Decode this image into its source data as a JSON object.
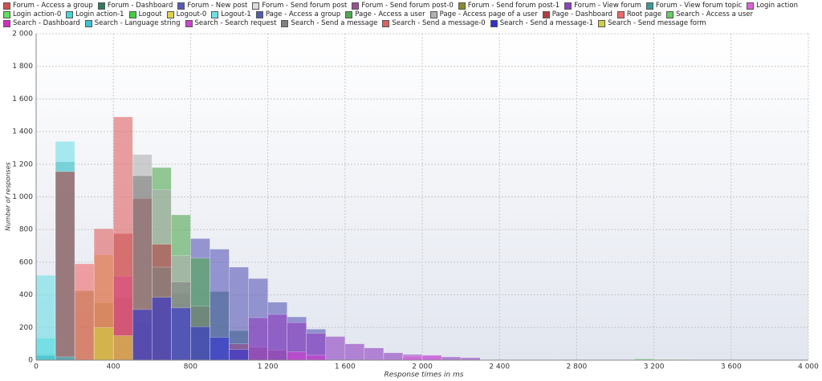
{
  "chart_data": {
    "type": "histogram-overlay",
    "x_label": "Response times in ms",
    "y_label": "Number of responses",
    "bin_width": 100,
    "xlim": [
      0,
      4000
    ],
    "ylim": [
      0,
      2000
    ],
    "grid": true,
    "xticks": [
      0,
      400,
      800,
      {
        "value": 1200,
        "label": "1 200"
      },
      {
        "value": 1600,
        "label": "1 600"
      },
      {
        "value": 2000,
        "label": "2 000"
      },
      {
        "value": 2400,
        "label": "2 400"
      },
      {
        "value": 2800,
        "label": "2 800"
      },
      {
        "value": 3200,
        "label": "3 200"
      },
      {
        "value": 3600,
        "label": "3 600"
      },
      {
        "value": 4000,
        "label": "4 000"
      }
    ],
    "yticks": [
      0,
      200,
      400,
      600,
      800,
      {
        "value": 1000,
        "label": "1 000"
      },
      {
        "value": 1200,
        "label": "1 200"
      },
      {
        "value": 1400,
        "label": "1 400"
      },
      {
        "value": 1600,
        "label": "1 600"
      },
      {
        "value": 1800,
        "label": "1 800"
      },
      {
        "value": 2000,
        "label": "2 000"
      }
    ],
    "series": [
      {
        "name": "Forum - Access a group",
        "color": "#d05050",
        "x": [
          0,
          100
        ],
        "values": [
          20,
          15
        ]
      },
      {
        "name": "Forum - Dashboard",
        "color": "#2e7d5b",
        "x": [
          700,
          800,
          900,
          1000
        ],
        "values": [
          410,
          330,
          420,
          180
        ]
      },
      {
        "name": "Forum - New post",
        "color": "#5858b8",
        "x": [
          800,
          900,
          1000,
          1100,
          1200,
          1300,
          1400
        ],
        "values": [
          745,
          680,
          570,
          500,
          355,
          265,
          190
        ]
      },
      {
        "name": "Forum - Send forum post",
        "color": "#dddddd",
        "x": [
          3200,
          3300
        ],
        "values": [
          8,
          10
        ]
      },
      {
        "name": "Forum - Send forum post-0",
        "color": "#9b4f8f",
        "x": [
          1000,
          1100,
          1200
        ],
        "values": [
          100,
          80,
          60
        ]
      },
      {
        "name": "Forum - Send forum post-1",
        "color": "#8a8a2a",
        "x": [
          200,
          300,
          400
        ],
        "values": [
          425,
          350,
          385
        ]
      },
      {
        "name": "Forum - View forum",
        "color": "#9040c0",
        "x": [
          1100,
          1200,
          1300,
          1400,
          1500,
          1600,
          1700,
          1800,
          1900,
          2000,
          2100,
          2200
        ],
        "values": [
          260,
          280,
          230,
          165,
          145,
          100,
          75,
          45,
          35,
          30,
          20,
          15
        ]
      },
      {
        "name": "Forum - View forum topic",
        "color": "#3a9a9a",
        "x": [
          0,
          100
        ],
        "values": [
          40,
          1215
        ]
      },
      {
        "name": "Login action",
        "color": "#e060e0",
        "x": [
          1900,
          2000
        ],
        "values": [
          25,
          30
        ]
      },
      {
        "name": "Login action-0",
        "color": "#60e060",
        "x": [
          0
        ],
        "values": [
          5
        ]
      },
      {
        "name": "Login action-1",
        "color": "#40d8d8",
        "x": [
          0
        ],
        "values": [
          135
        ]
      },
      {
        "name": "Logout",
        "color": "#40d040",
        "x": [
          0
        ],
        "values": [
          10
        ]
      },
      {
        "name": "Logout-0",
        "color": "#e0d050",
        "x": [
          300
        ],
        "values": [
          645
        ]
      },
      {
        "name": "Logout-1",
        "color": "#70e0e8",
        "x": [
          0,
          100
        ],
        "values": [
          520,
          1340
        ]
      },
      {
        "name": "Page - Access a group",
        "color": "#5060b0",
        "x": [
          500,
          600,
          700
        ],
        "values": [
          240,
          390,
          350
        ]
      },
      {
        "name": "Page - Access a user",
        "color": "#50a850",
        "x": [
          600,
          700,
          800
        ],
        "values": [
          1180,
          890,
          625
        ]
      },
      {
        "name": "Page - Access page of a user",
        "color": "#b0b0b0",
        "x": [
          500,
          600,
          700
        ],
        "values": [
          1260,
          1045,
          640
        ]
      },
      {
        "name": "Page - Dashboard",
        "color": "#b04040",
        "x": [
          100,
          400,
          500,
          600
        ],
        "values": [
          1155,
          775,
          990,
          710
        ]
      },
      {
        "name": "Root page",
        "color": "#f06868",
        "x": [
          200
        ],
        "values": [
          590
        ]
      },
      {
        "name": "Search - Access a user",
        "color": "#60d060",
        "x": [
          3100
        ],
        "values": [
          8
        ]
      },
      {
        "name": "Search - Dashboard",
        "color": "#d030c0",
        "x": [
          400
        ],
        "values": [
          515
        ]
      },
      {
        "name": "Search - Language string",
        "color": "#40c0d0",
        "x": [
          0,
          100
        ],
        "values": [
          30,
          20
        ]
      },
      {
        "name": "Search - Search request",
        "color": "#d040d0",
        "x": [
          1300,
          1400
        ],
        "values": [
          50,
          30
        ]
      },
      {
        "name": "Search - Send a message",
        "color": "#808080",
        "x": [
          500,
          600,
          700,
          800
        ],
        "values": [
          1130,
          570,
          480,
          330
        ]
      },
      {
        "name": "Search - Send a message-0",
        "color": "#e06060",
        "x": [
          300,
          400
        ],
        "values": [
          805,
          1490
        ]
      },
      {
        "name": "Search - Send a message-1",
        "color": "#3030d0",
        "x": [
          500,
          600,
          700,
          800,
          900,
          1000
        ],
        "values": [
          310,
          385,
          320,
          205,
          140,
          65
        ]
      },
      {
        "name": "Search - Send message form",
        "color": "#d0d040",
        "x": [
          300,
          400
        ],
        "values": [
          200,
          150
        ]
      }
    ]
  }
}
